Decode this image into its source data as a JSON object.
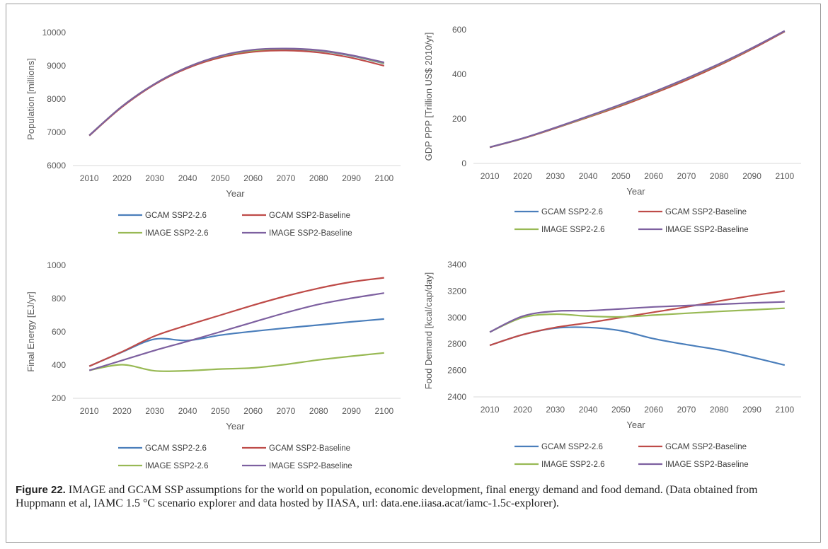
{
  "caption": {
    "label": "Figure 22.",
    "text": " IMAGE and GCAM SSP assumptions for the world on population, economic development, final energy demand and food demand. (Data obtained from Huppmann et al, IAMC 1.5 °C scenario explorer and data hosted by IIASA, url: data.ene.iiasa.acat/iamc-1.5c-explorer)."
  },
  "colors": {
    "GCAM SSP2-2.6": "#4a7ebb",
    "GCAM SSP2-Baseline": "#be4b48",
    "IMAGE SSP2-2.6": "#98b954",
    "IMAGE SSP2-Baseline": "#7d60a0",
    "axis": "#d9d9d9"
  },
  "chart_data": [
    {
      "type": "line",
      "ylabel": "Population [millions]",
      "xlabel": "Year",
      "x": [
        2010,
        2020,
        2030,
        2040,
        2050,
        2060,
        2070,
        2080,
        2090,
        2100
      ],
      "ylim": [
        6000,
        10000
      ],
      "yticks": [
        6000,
        7000,
        8000,
        9000,
        10000
      ],
      "legend": [
        "GCAM SSP2-2.6",
        "GCAM SSP2-Baseline",
        "IMAGE SSP2-2.6",
        "IMAGE SSP2-Baseline"
      ],
      "series": [
        {
          "name": "GCAM SSP2-2.6",
          "values": [
            6900,
            7770,
            8450,
            8950,
            9280,
            9450,
            9500,
            9450,
            9300,
            9070
          ]
        },
        {
          "name": "GCAM SSP2-Baseline",
          "values": [
            6900,
            7760,
            8440,
            8930,
            9250,
            9420,
            9460,
            9400,
            9240,
            9000
          ]
        },
        {
          "name": "IMAGE SSP2-2.6",
          "values": [
            6910,
            7780,
            8460,
            8960,
            9290,
            9460,
            9510,
            9460,
            9310,
            9080
          ]
        },
        {
          "name": "IMAGE SSP2-Baseline",
          "values": [
            6910,
            7780,
            8460,
            8960,
            9300,
            9480,
            9520,
            9470,
            9320,
            9100
          ]
        }
      ]
    },
    {
      "type": "line",
      "ylabel": "GDP PPP [Trillion US$ 2010/yr]",
      "xlabel": "Year",
      "x": [
        2010,
        2020,
        2030,
        2040,
        2050,
        2060,
        2070,
        2080,
        2090,
        2100
      ],
      "ylim": [
        0,
        600
      ],
      "yticks": [
        0,
        200,
        400,
        600
      ],
      "legend": [
        "GCAM SSP2-2.6",
        "GCAM SSP2-Baseline",
        "IMAGE SSP2-2.6",
        "IMAGE SSP2-Baseline"
      ],
      "series": [
        {
          "name": "GCAM SSP2-2.6",
          "values": [
            73,
            112,
            160,
            210,
            262,
            318,
            378,
            443,
            515,
            592
          ]
        },
        {
          "name": "GCAM SSP2-Baseline",
          "values": [
            72,
            111,
            158,
            207,
            258,
            314,
            374,
            440,
            513,
            592
          ]
        },
        {
          "name": "IMAGE SSP2-2.6",
          "values": [
            73,
            112,
            160,
            210,
            263,
            319,
            380,
            445,
            517,
            594
          ]
        },
        {
          "name": "IMAGE SSP2-Baseline",
          "values": [
            73,
            113,
            161,
            212,
            265,
            321,
            382,
            447,
            518,
            595
          ]
        }
      ]
    },
    {
      "type": "line",
      "ylabel": "Final Energy [EJ/yr]",
      "xlabel": "Year",
      "x": [
        2010,
        2020,
        2030,
        2040,
        2050,
        2060,
        2070,
        2080,
        2090,
        2100
      ],
      "ylim": [
        200,
        1000
      ],
      "yticks": [
        200,
        400,
        600,
        800,
        1000
      ],
      "legend": [
        "GCAM SSP2-2.6",
        "GCAM SSP2-Baseline",
        "IMAGE SSP2-2.6",
        "IMAGE SSP2-Baseline"
      ],
      "series": [
        {
          "name": "GCAM SSP2-2.6",
          "values": [
            393,
            478,
            556,
            548,
            580,
            603,
            623,
            641,
            660,
            677
          ]
        },
        {
          "name": "GCAM SSP2-Baseline",
          "values": [
            393,
            480,
            575,
            640,
            700,
            760,
            815,
            862,
            900,
            925
          ]
        },
        {
          "name": "IMAGE SSP2-2.6",
          "values": [
            368,
            402,
            365,
            366,
            376,
            383,
            404,
            431,
            453,
            473
          ]
        },
        {
          "name": "IMAGE SSP2-Baseline",
          "values": [
            368,
            428,
            488,
            543,
            600,
            658,
            715,
            765,
            802,
            833
          ]
        }
      ]
    },
    {
      "type": "line",
      "ylabel": "Food Demand [kcal/cap/day]",
      "xlabel": "Year",
      "x": [
        2010,
        2020,
        2030,
        2040,
        2050,
        2060,
        2070,
        2080,
        2090,
        2100
      ],
      "ylim": [
        2400,
        3400
      ],
      "yticks": [
        2400,
        2600,
        2800,
        3000,
        3200,
        3400
      ],
      "legend": [
        "GCAM SSP2-2.6",
        "GCAM SSP2-Baseline",
        "IMAGE SSP2-2.6",
        "IMAGE SSP2-Baseline"
      ],
      "series": [
        {
          "name": "GCAM SSP2-2.6",
          "values": [
            2790,
            2870,
            2920,
            2925,
            2900,
            2840,
            2795,
            2755,
            2700,
            2640
          ]
        },
        {
          "name": "GCAM SSP2-Baseline",
          "values": [
            2790,
            2870,
            2925,
            2960,
            3000,
            3040,
            3080,
            3125,
            3165,
            3200
          ]
        },
        {
          "name": "IMAGE SSP2-2.6",
          "values": [
            2890,
            3000,
            3025,
            3010,
            3005,
            3018,
            3032,
            3046,
            3058,
            3070
          ]
        },
        {
          "name": "IMAGE SSP2-Baseline",
          "values": [
            2890,
            3010,
            3048,
            3052,
            3065,
            3080,
            3090,
            3100,
            3110,
            3118
          ]
        }
      ]
    }
  ]
}
